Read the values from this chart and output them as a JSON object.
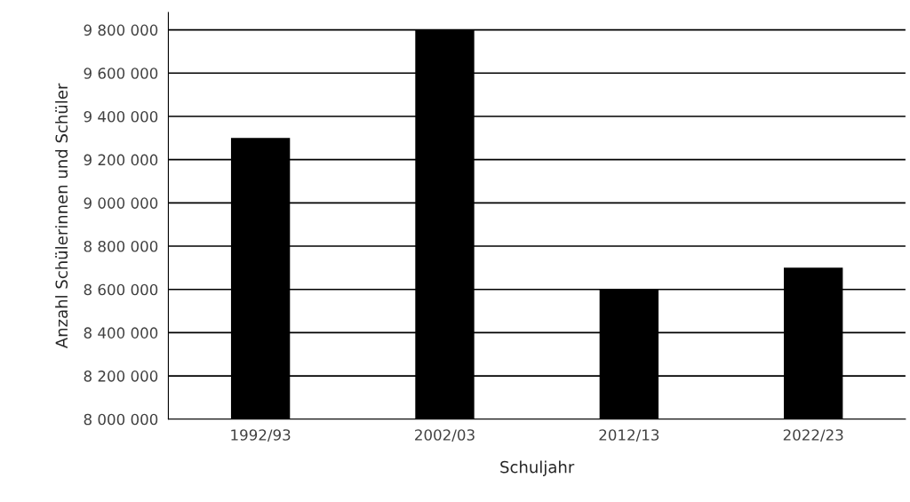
{
  "chart_data": {
    "type": "bar",
    "xlabel": "Schuljahr",
    "ylabel": "Anzahl Schülerinnen und Schüler",
    "categories": [
      "1992/93",
      "2002/03",
      "2012/13",
      "2022/23"
    ],
    "values": [
      9300000,
      9800000,
      8600000,
      8700000
    ],
    "color": "#000000",
    "ylim": [
      8000000,
      9880000
    ],
    "yticks": [
      {
        "value": 8000000,
        "label": "8 000 000"
      },
      {
        "value": 8200000,
        "label": "8 200 000"
      },
      {
        "value": 8400000,
        "label": "8 400 000"
      },
      {
        "value": 8600000,
        "label": "8 600 000"
      },
      {
        "value": 8800000,
        "label": "8 800 000"
      },
      {
        "value": 9000000,
        "label": "9 000 000"
      },
      {
        "value": 9200000,
        "label": "9 200 000"
      },
      {
        "value": 9400000,
        "label": "9 400 000"
      },
      {
        "value": 9600000,
        "label": "9 600 000"
      },
      {
        "value": 9800000,
        "label": "9 800 000"
      }
    ],
    "grid": "y"
  }
}
